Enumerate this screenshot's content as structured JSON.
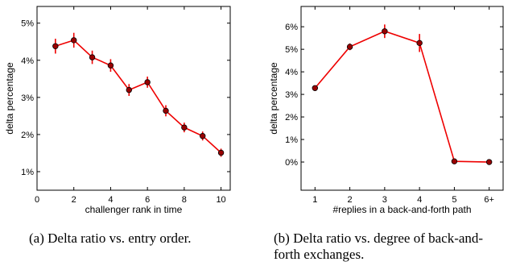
{
  "chart_data": [
    {
      "type": "line",
      "xlabel": "challenger rank in time",
      "ylabel": "delta percentage",
      "xlim": [
        0,
        10.5
      ],
      "ylim": [
        0.5,
        5.45
      ],
      "x_ticks": [
        0,
        2,
        4,
        6,
        8,
        10
      ],
      "y_ticks": [
        1,
        2,
        3,
        4,
        5
      ],
      "y_tick_labels": [
        "1%",
        "2%",
        "3%",
        "4%",
        "5%"
      ],
      "x": [
        1,
        2,
        3,
        4,
        5,
        6,
        7,
        8,
        9,
        10
      ],
      "series": [
        {
          "values": [
            4.38,
            4.54,
            4.08,
            3.86,
            3.2,
            3.41,
            2.64,
            2.19,
            1.96,
            1.51
          ],
          "error": [
            0.2,
            0.2,
            0.18,
            0.17,
            0.16,
            0.15,
            0.15,
            0.13,
            0.12,
            0.11
          ],
          "color": "#ee0000",
          "marker_color": "#990000"
        }
      ],
      "grid": false,
      "caption": "(a) Delta ratio vs. entry order."
    },
    {
      "type": "line",
      "xlabel": "#replies in a back-and-forth path",
      "ylabel": "delta percentage",
      "xlim": [
        0.6,
        6.4
      ],
      "ylim": [
        -1.25,
        6.9
      ],
      "x_ticks": [
        1,
        2,
        3,
        4,
        5,
        6
      ],
      "x_tick_labels": [
        "1",
        "2",
        "3",
        "4",
        "5",
        "6+"
      ],
      "y_ticks": [
        0,
        1,
        2,
        3,
        4,
        5,
        6
      ],
      "y_tick_labels": [
        "0%",
        "1%",
        "2%",
        "3%",
        "4%",
        "5%",
        "6%"
      ],
      "x": [
        1,
        2,
        3,
        4,
        5,
        6
      ],
      "series": [
        {
          "values": [
            3.28,
            5.11,
            5.8,
            5.28,
            0.03,
            0.0
          ],
          "error": [
            0.05,
            0.15,
            0.3,
            0.4,
            0.03,
            0.03
          ],
          "color": "#ee0000",
          "marker_color": "#990000"
        }
      ],
      "grid": false,
      "caption": "(b) Delta ratio vs.  degree of back-and-forth exchanges."
    }
  ]
}
